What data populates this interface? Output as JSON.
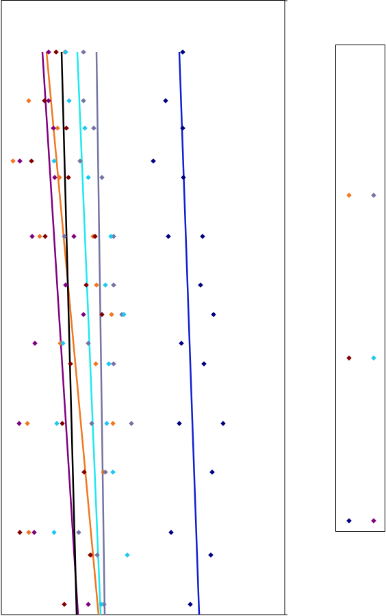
{
  "chart_data": {
    "type": "scatter",
    "xlim": [
      -2,
      412
    ],
    "ylim": [
      897,
      0
    ],
    "series": [
      {
        "color": "#f07820",
        "x": [
          91,
          38,
          80,
          15,
          83,
          54,
          132,
          137,
          159,
          84,
          136,
          36,
          161,
          147,
          38,
          130
        ],
        "y": [
          76,
          147,
          187,
          235,
          259,
          345,
          345,
          416,
          459,
          501,
          531,
          618,
          618,
          689,
          777,
          810
        ]
      },
      {
        "color": "#7474a4",
        "x": [
          118,
          118,
          133,
          113,
          145,
          90,
          162,
          162,
          174,
          125,
          162,
          130,
          188,
          150,
          111,
          138,
          148
        ],
        "y": [
          76,
          147,
          187,
          235,
          259,
          345,
          345,
          416,
          459,
          501,
          531,
          618,
          618,
          689,
          777,
          810,
          882
        ]
      },
      {
        "color": "#800000",
        "x": [
          78,
          61,
          93,
          42,
          96,
          62,
          135,
          122,
          145,
          99,
          87,
          119,
          25,
          128,
          90
        ],
        "y": [
          76,
          147,
          187,
          235,
          259,
          345,
          345,
          416,
          459,
          531,
          618,
          689,
          777,
          810,
          882
        ]
      },
      {
        "color": "#1ec8f0",
        "x": [
          92,
          97,
          120,
          75,
          125,
          158,
          150,
          177,
          88,
          155,
          79,
          152,
          161,
          75,
          182,
          144
        ],
        "y": [
          76,
          147,
          187,
          235,
          259,
          345,
          416,
          459,
          501,
          531,
          618,
          618,
          689,
          777,
          810,
          882
        ]
      },
      {
        "color": "#000080",
        "x": [
          263,
          238,
          263,
          220,
          264,
          242,
          292,
          289,
          308,
          261,
          294,
          258,
          322,
          306,
          246,
          304,
          274
        ],
        "y": [
          76,
          147,
          187,
          235,
          259,
          345,
          345,
          416,
          459,
          501,
          531,
          618,
          618,
          689,
          777,
          810,
          882
        ]
      },
      {
        "color": "#800080",
        "x": [
          67,
          67,
          74,
          25,
          76,
          43,
          104,
          92,
          118,
          47,
          24,
          46,
          125
        ],
        "y": [
          76,
          147,
          187,
          235,
          259,
          345,
          345,
          416,
          459,
          501,
          618,
          777,
          882
        ]
      }
    ],
    "trendlines": [
      {
        "color": "#800080",
        "x": [
          58,
          110
        ],
        "y": [
          76,
          897
        ]
      },
      {
        "color": "#f07820",
        "x": [
          64,
          140
        ],
        "y": [
          76,
          897
        ]
      },
      {
        "color": "#000000",
        "x": [
          86,
          108
        ],
        "y": [
          76,
          897
        ]
      },
      {
        "color": "#1ee8f0",
        "x": [
          109,
          143
        ],
        "y": [
          76,
          897
        ]
      },
      {
        "color": "#7474a4",
        "x": [
          137,
          149
        ],
        "y": [
          76,
          897
        ]
      },
      {
        "color": "#1020d0",
        "x": [
          258,
          287
        ],
        "y": [
          76,
          897
        ]
      }
    ],
    "legend": {
      "columns": 2
    }
  }
}
